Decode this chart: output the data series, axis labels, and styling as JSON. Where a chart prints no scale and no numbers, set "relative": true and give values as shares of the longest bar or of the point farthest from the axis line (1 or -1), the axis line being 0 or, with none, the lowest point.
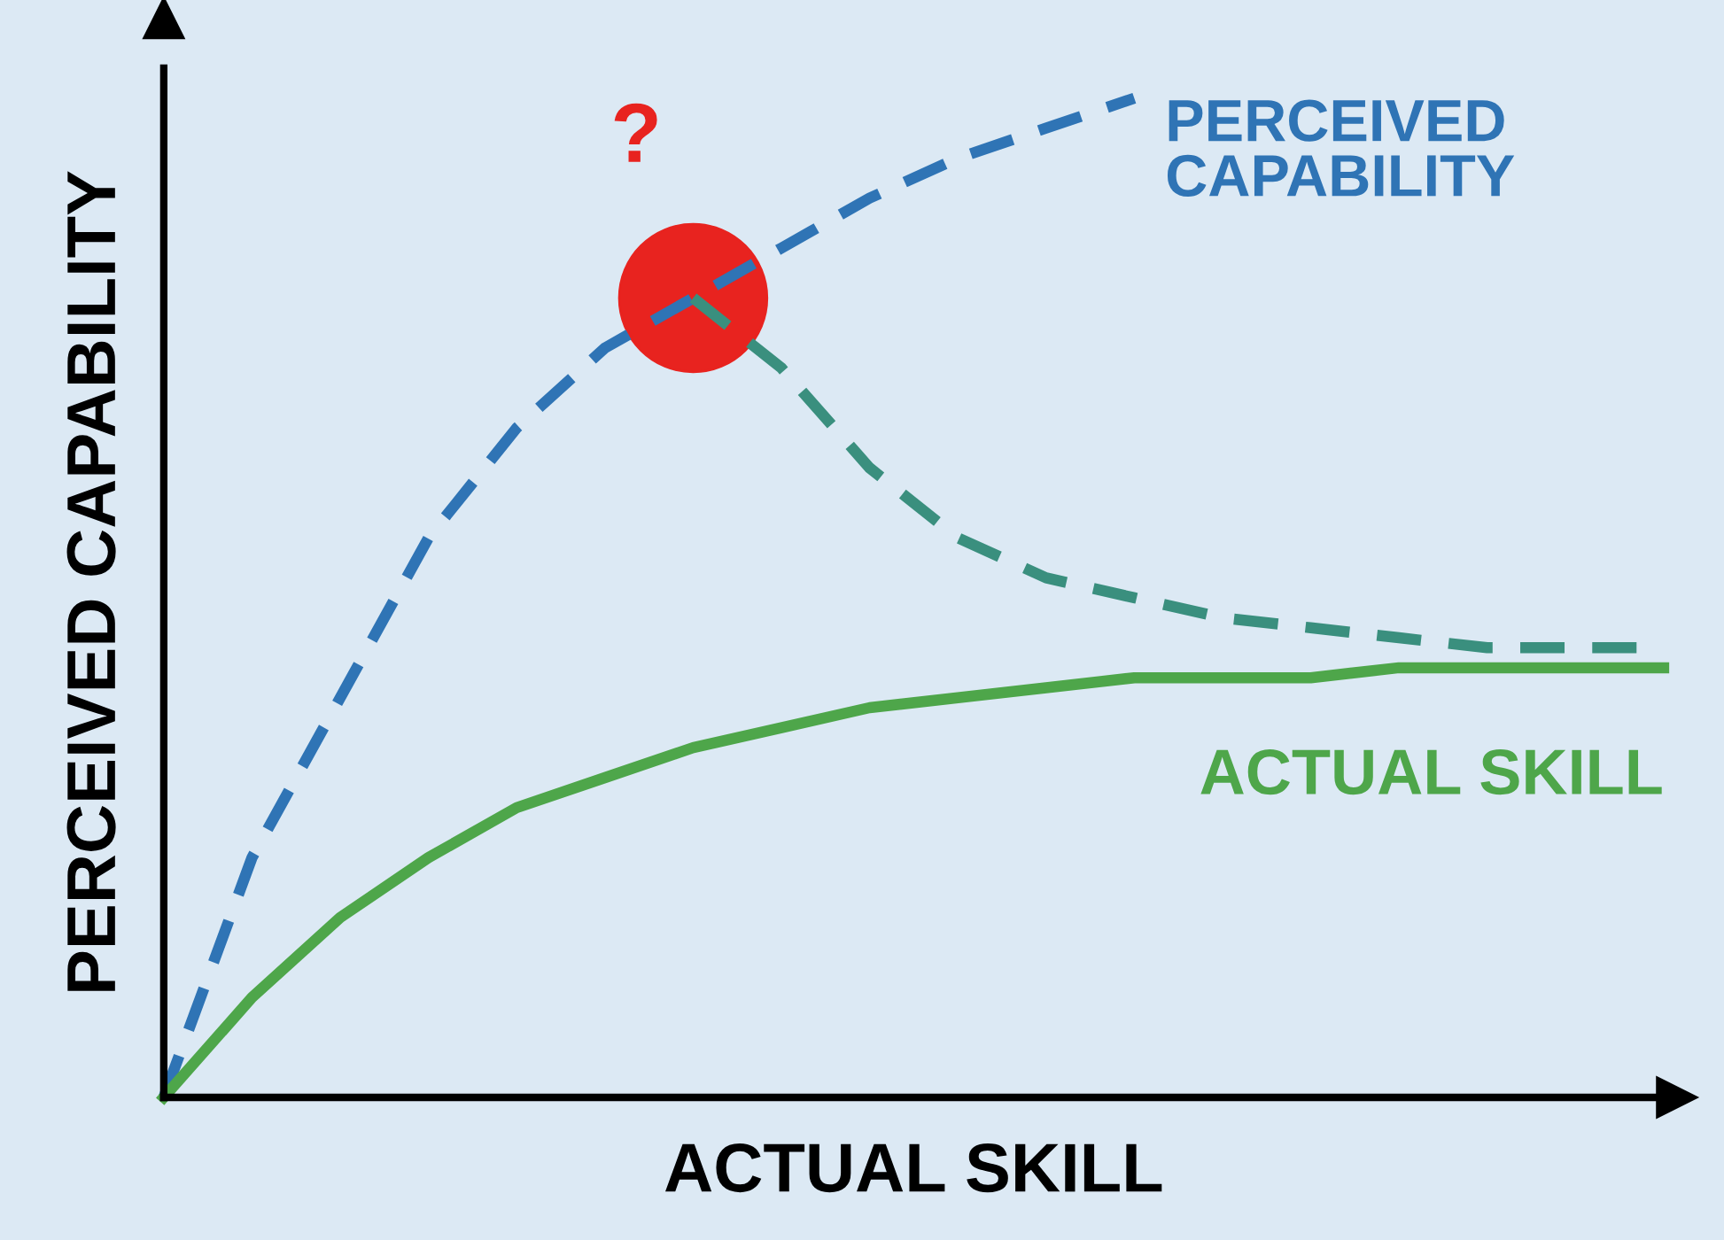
{
  "chart_data": {
    "type": "line",
    "relative": true,
    "xlabel": "ACTUAL SKILL",
    "ylabel": "PERCEIVED CAPABILITY",
    "categories": [
      null,
      null,
      null,
      null,
      null,
      null,
      null,
      null,
      null,
      null,
      null,
      null,
      null,
      null,
      null,
      null,
      null,
      null
    ],
    "series": [
      {
        "name": "PERCEIVED CAPABILITY",
        "color": "#2f74b5",
        "line_style": "dashed",
        "values": [
          0,
          0.24,
          0.4,
          0.56,
          0.67,
          0.75,
          0.8,
          0.85,
          0.9,
          0.94,
          0.97,
          1.0,
          null,
          null,
          null,
          null,
          null,
          null
        ]
      },
      {
        "color": "#3a8f7e",
        "line_style": "dashed",
        "values": [
          null,
          null,
          null,
          null,
          null,
          null,
          0.8,
          0.73,
          0.63,
          0.56,
          0.52,
          0.5,
          0.48,
          0.47,
          0.46,
          0.45,
          0.45,
          0.45
        ]
      },
      {
        "name": "ACTUAL SKILL",
        "color": "#4ea64a",
        "line_style": "solid",
        "values": [
          0,
          0.1,
          0.18,
          0.24,
          0.29,
          0.32,
          0.35,
          0.37,
          0.39,
          0.4,
          0.41,
          0.42,
          0.42,
          0.42,
          0.43,
          0.43,
          0.43,
          0.43
        ]
      }
    ],
    "annotations": [
      "?"
    ],
    "legend": false,
    "marker": "none"
  }
}
